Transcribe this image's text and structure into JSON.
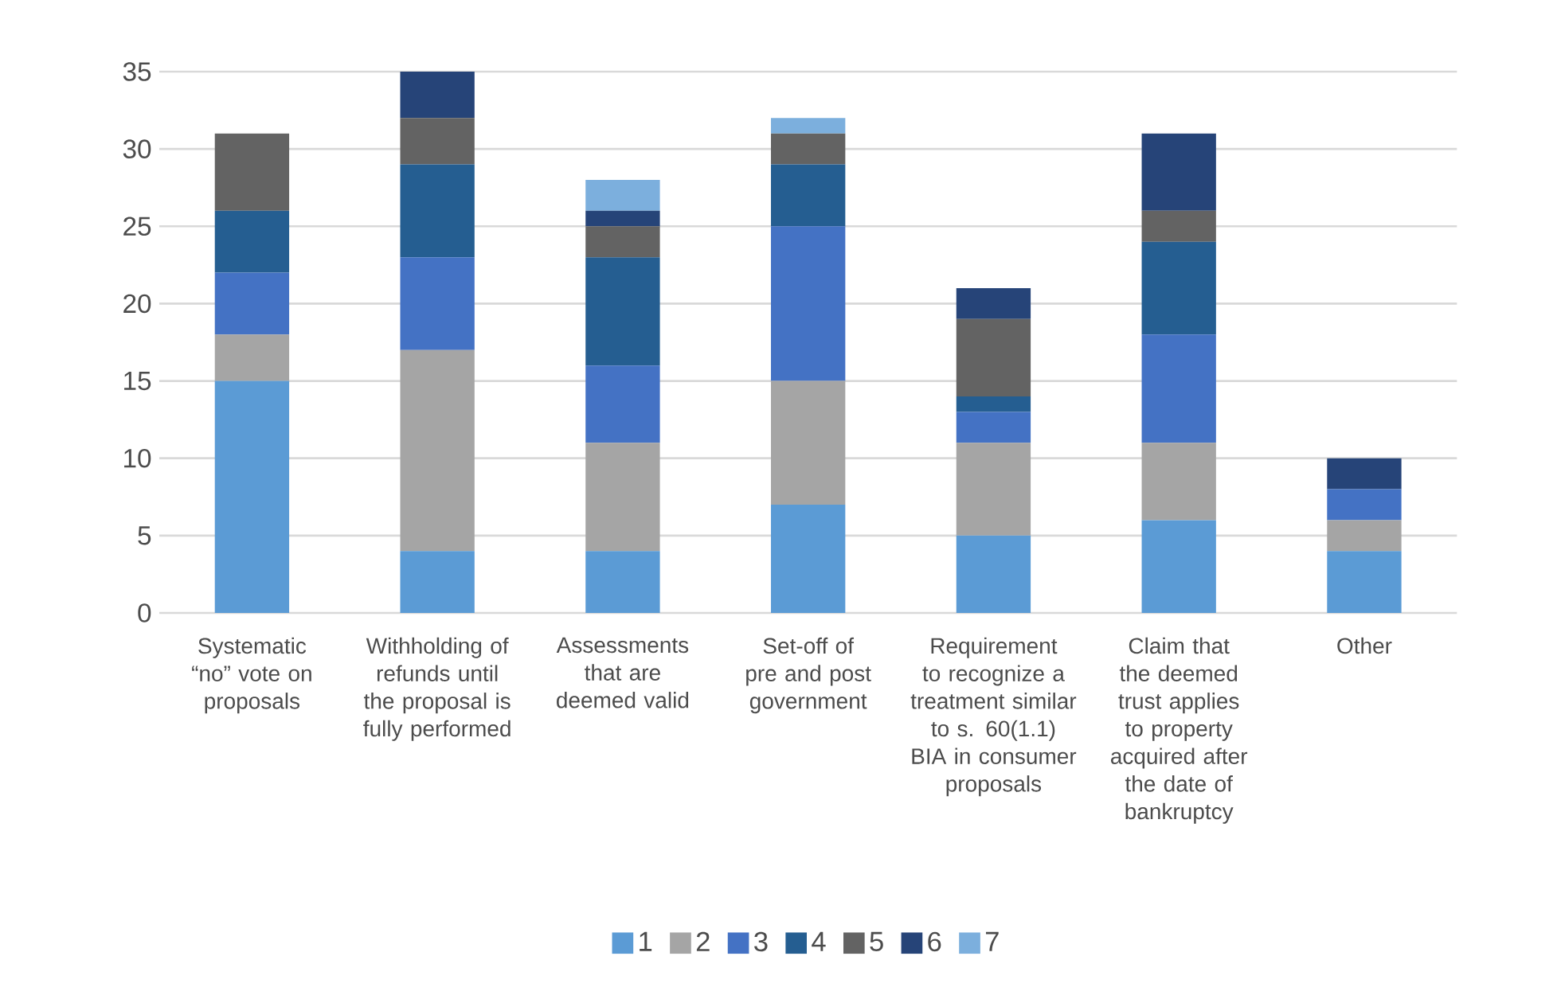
{
  "chart_data": {
    "type": "bar",
    "stacked": true,
    "categories": [
      "Systematic “no” vote on proposals",
      "Withholding of refunds until the proposal is fully performed",
      "Assessments that are deemed valid",
      "Set-off of pre and post government",
      "Requirement to recognize a treatment similar to s. 60(1.1) BIA in consumer proposals",
      "Claim that the deemed trust applies to property acquired after the date of bankruptcy",
      "Other"
    ],
    "series": [
      {
        "name": "1",
        "color": "#5b9bd5",
        "values": [
          15,
          4,
          4,
          7,
          5,
          6,
          4
        ]
      },
      {
        "name": "2",
        "color": "#a5a5a5",
        "values": [
          3,
          13,
          7,
          8,
          6,
          5,
          2
        ]
      },
      {
        "name": "3",
        "color": "#4472c4",
        "values": [
          4,
          6,
          5,
          10,
          2,
          7,
          2
        ]
      },
      {
        "name": "4",
        "color": "#255e91",
        "values": [
          4,
          6,
          7,
          4,
          1,
          6,
          0
        ]
      },
      {
        "name": "5",
        "color": "#636363",
        "values": [
          5,
          3,
          2,
          2,
          5,
          2,
          0
        ]
      },
      {
        "name": "6",
        "color": "#264478",
        "values": [
          0,
          3,
          1,
          0,
          2,
          5,
          2
        ]
      },
      {
        "name": "7",
        "color": "#7cafdd",
        "values": [
          0,
          0,
          2,
          1,
          0,
          0,
          0
        ]
      }
    ],
    "ylim": [
      0,
      35
    ],
    "yticks": [
      0,
      5,
      10,
      15,
      20,
      25,
      30,
      35
    ],
    "grid": "y",
    "legend": "bottom"
  }
}
